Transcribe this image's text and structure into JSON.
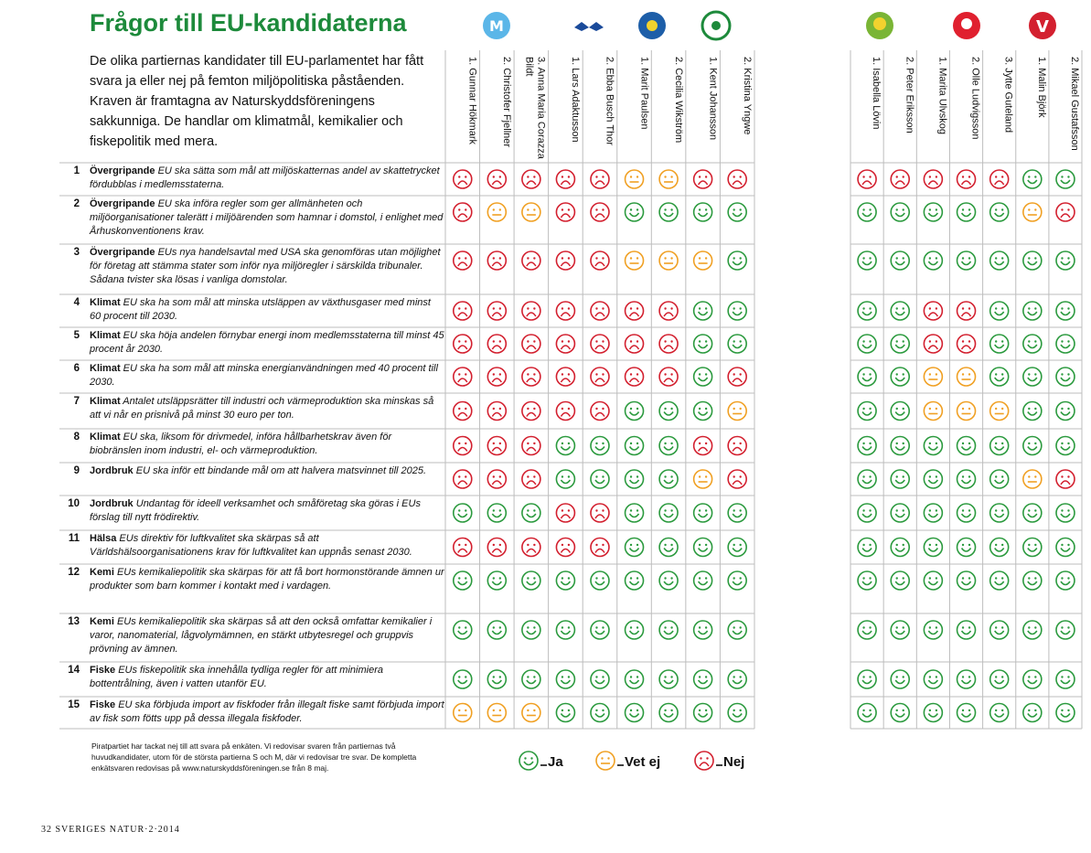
{
  "header": {
    "title": "Frågor till EU-kandidaterna",
    "intro": "De olika partiernas kandidater till EU-parlamentet har fått svara ja eller nej på femton miljöpolitiska påståenden. Kraven är framtagna av Naturskyddsföreningens sakkunniga. De handlar om klimatmål, kemikalier och fiskepolitik med mera."
  },
  "candidates": [
    "1. Gunnar Hökmark",
    "2. Christofer Fjellner",
    "3. Anna Maria Corazza Bildt",
    "1. Lars Adaktusson",
    "2. Ebba Busch Thor",
    "1. Marit Paulsen",
    "2. Cecilia Wikström",
    "1. Kent Johansson",
    "2. Kristina Yngwe",
    "1. Isabella Lövin",
    "2. Peter Eriksson",
    "1. Marita Ulvskog",
    "2. Olle Ludvigsson",
    "3. Jytte Guteland",
    "1. Malin Björk",
    "2. Mikael Gustafsson"
  ],
  "legend": [
    {
      "label": "Ja",
      "color": "#2b9a3e"
    },
    {
      "label": "Vet ej",
      "color": "#f0a023"
    },
    {
      "label": "Nej",
      "color": "#d3202f"
    }
  ],
  "questions": [
    {
      "number": "1",
      "category": "Övergripande",
      "statement": "EU ska sätta som mål att miljöskatternas andel av skattetrycket fördubblas i medlemsstaterna.",
      "answers": [
        "Nej",
        "Nej",
        "Nej",
        "Nej",
        "Nej",
        "Vet ej",
        "Vet ej",
        "Nej",
        "Nej",
        "Nej",
        "Nej",
        "Nej",
        "Nej",
        "Nej",
        "Ja",
        "Ja"
      ]
    },
    {
      "number": "2",
      "category": "Övergripande",
      "statement": "EU ska införa regler som ger allmänheten och miljöorganisationer talerätt i miljöärenden som hamnar i domstol, i enlighet med Århuskonventionens krav.",
      "answers": [
        "Nej",
        "Vet ej",
        "Vet ej",
        "Nej",
        "Nej",
        "Ja",
        "Ja",
        "Ja",
        "Ja",
        "Ja",
        "Ja",
        "Ja",
        "Ja",
        "Ja",
        "Vet ej",
        "Nej"
      ]
    },
    {
      "number": "3",
      "category": "Övergripande",
      "statement": "EUs nya handelsavtal med USA ska genomföras utan möjlighet för företag att stämma stater som inför nya miljöregler i särskilda tribunaler. Sådana tvister ska lösas i vanliga domstolar.",
      "answers": [
        "Nej",
        "Nej",
        "Nej",
        "Nej",
        "Nej",
        "Vet ej",
        "Vet ej",
        "Vet ej",
        "Ja",
        "Ja",
        "Ja",
        "Ja",
        "Ja",
        "Ja",
        "Ja",
        "Ja"
      ]
    },
    {
      "number": "4",
      "category": "Klimat",
      "statement": "EU ska ha som mål att minska utsläppen av växthusgaser med minst 60 procent till 2030.",
      "answers": [
        "Nej",
        "Nej",
        "Nej",
        "Nej",
        "Nej",
        "Nej",
        "Nej",
        "Ja",
        "Ja",
        "Ja",
        "Ja",
        "Nej",
        "Nej",
        "Ja",
        "Ja",
        "Ja"
      ]
    },
    {
      "number": "5",
      "category": "Klimat",
      "statement": "EU ska höja andelen förnybar energi inom medlemsstaterna till minst 45 procent år 2030.",
      "answers": [
        "Nej",
        "Nej",
        "Nej",
        "Nej",
        "Nej",
        "Nej",
        "Nej",
        "Ja",
        "Ja",
        "Ja",
        "Ja",
        "Nej",
        "Nej",
        "Ja",
        "Ja",
        "Ja"
      ]
    },
    {
      "number": "6",
      "category": "Klimat",
      "statement": "EU ska ha som mål att minska energianvändningen med 40 procent till 2030.",
      "answers": [
        "Nej",
        "Nej",
        "Nej",
        "Nej",
        "Nej",
        "Nej",
        "Nej",
        "Ja",
        "Nej",
        "Ja",
        "Ja",
        "Vet ej",
        "Vet ej",
        "Ja",
        "Ja",
        "Ja"
      ]
    },
    {
      "number": "7",
      "category": "Klimat",
      "statement": "Antalet utsläppsrätter till industri och värmeproduktion ska minskas så att vi når en prisnivå på minst 30 euro per ton.",
      "answers": [
        "Nej",
        "Nej",
        "Nej",
        "Nej",
        "Nej",
        "Ja",
        "Ja",
        "Ja",
        "Vet ej",
        "Ja",
        "Ja",
        "Vet ej",
        "Vet ej",
        "Vet ej",
        "Ja",
        "Ja"
      ]
    },
    {
      "number": "8",
      "category": "Klimat",
      "statement": "EU ska, liksom för drivmedel, införa hållbarhetskrav även för biobränslen inom industri, el- och värmeproduktion.",
      "answers": [
        "Nej",
        "Nej",
        "Nej",
        "Ja",
        "Ja",
        "Ja",
        "Ja",
        "Nej",
        "Nej",
        "Ja",
        "Ja",
        "Ja",
        "Ja",
        "Ja",
        "Ja",
        "Ja"
      ]
    },
    {
      "number": "9",
      "category": "Jordbruk",
      "statement": "EU ska inför ett bindande mål om att halvera matsvinnet till 2025.",
      "answers": [
        "Nej",
        "Nej",
        "Nej",
        "Ja",
        "Ja",
        "Ja",
        "Ja",
        "Vet ej",
        "Nej",
        "Ja",
        "Ja",
        "Ja",
        "Ja",
        "Ja",
        "Vet ej",
        "Nej"
      ]
    },
    {
      "number": "10",
      "category": "Jordbruk",
      "statement": "Undantag för ideell verksamhet och småföretag ska göras i EUs förslag till nytt frödirektiv.",
      "answers": [
        "Ja",
        "Ja",
        "Ja",
        "Nej",
        "Nej",
        "Ja",
        "Ja",
        "Ja",
        "Ja",
        "Ja",
        "Ja",
        "Ja",
        "Ja",
        "Ja",
        "Ja",
        "Ja"
      ]
    },
    {
      "number": "11",
      "category": "Hälsa",
      "statement": "EUs direktiv för luftkvalitet ska skärpas så att Världshälsoorganisationens krav för luftkvalitet kan uppnås senast 2030.",
      "answers": [
        "Nej",
        "Nej",
        "Nej",
        "Nej",
        "Nej",
        "Ja",
        "Ja",
        "Ja",
        "Ja",
        "Ja",
        "Ja",
        "Ja",
        "Ja",
        "Ja",
        "Ja",
        "Ja"
      ]
    },
    {
      "number": "12",
      "category": "Kemi",
      "statement": "EUs kemikaliepolitik ska skärpas för att få bort hormonstörande ämnen ur produkter som barn kommer i kontakt med i vardagen.",
      "answers": [
        "Ja",
        "Ja",
        "Ja",
        "Ja",
        "Ja",
        "Ja",
        "Ja",
        "Ja",
        "Ja",
        "Ja",
        "Ja",
        "Ja",
        "Ja",
        "Ja",
        "Ja",
        "Ja"
      ]
    },
    {
      "number": "13",
      "category": "Kemi",
      "statement": "EUs kemikaliepolitik ska skärpas så att den också omfattar kemikalier i varor, nanomaterial, lågvolymämnen, en stärkt utbytesregel och gruppvis prövning av ämnen.",
      "answers": [
        "Ja",
        "Ja",
        "Ja",
        "Ja",
        "Ja",
        "Ja",
        "Ja",
        "Ja",
        "Ja",
        "Ja",
        "Ja",
        "Ja",
        "Ja",
        "Ja",
        "Ja",
        "Ja"
      ]
    },
    {
      "number": "14",
      "category": "Fiske",
      "statement": "EUs fiskepolitik ska innehålla tydliga regler för att minimiera bottentrålning, även i vatten utanför EU.",
      "answers": [
        "Ja",
        "Ja",
        "Ja",
        "Ja",
        "Ja",
        "Ja",
        "Ja",
        "Ja",
        "Ja",
        "Ja",
        "Ja",
        "Ja",
        "Ja",
        "Ja",
        "Ja",
        "Ja"
      ]
    },
    {
      "number": "15",
      "category": "Fiske",
      "statement": "EU ska förbjuda import av fiskfoder från illegalt fiske samt förbjuda import av fisk som fötts upp på dessa illegala fiskfoder.",
      "answers": [
        "Vet ej",
        "Vet ej",
        "Vet ej",
        "Ja",
        "Ja",
        "Ja",
        "Ja",
        "Ja",
        "Ja",
        "Ja",
        "Ja",
        "Ja",
        "Ja",
        "Ja",
        "Ja",
        "Ja"
      ]
    }
  ],
  "footnote": "Piratpartiet har tackat nej till att svara på enkäten. Vi redovisar svaren från partiernas två huvudkandidater, utom för de största partierna S och M, där vi redovisar tre svar. De kompletta enkätsvaren redovisas på www.naturskyddsföreningen.se från 8 maj.",
  "footer": "32 SVERIGES NATUR·2·2014"
}
